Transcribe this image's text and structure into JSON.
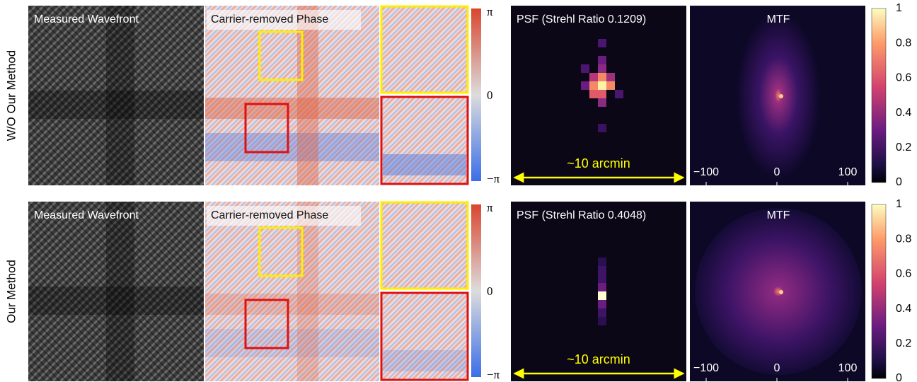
{
  "rows": [
    {
      "label": "W/O Our Method",
      "wavefront_title": "Measured Wavefront",
      "phase_title": "Carrier-removed Phase",
      "psf_title": "PSF (Strehl Ratio 0.1209)",
      "mtf_title": "MTF",
      "scale_label": "~10 arcmin"
    },
    {
      "label": "Our Method",
      "wavefront_title": "Measured Wavefront",
      "phase_title": "Carrier-removed Phase",
      "psf_title": "PSF (Strehl Ratio 0.4048)",
      "mtf_title": "MTF",
      "scale_label": "~10 arcmin"
    }
  ],
  "phase_colorbar_ticks": [
    "π",
    "0",
    "−π"
  ],
  "mtf_colorbar_ticks": [
    "1",
    "0.8",
    "0.6",
    "0.4",
    "0.2",
    "0"
  ],
  "mtf_axis_ticks": [
    "−100",
    "0",
    "100"
  ]
}
